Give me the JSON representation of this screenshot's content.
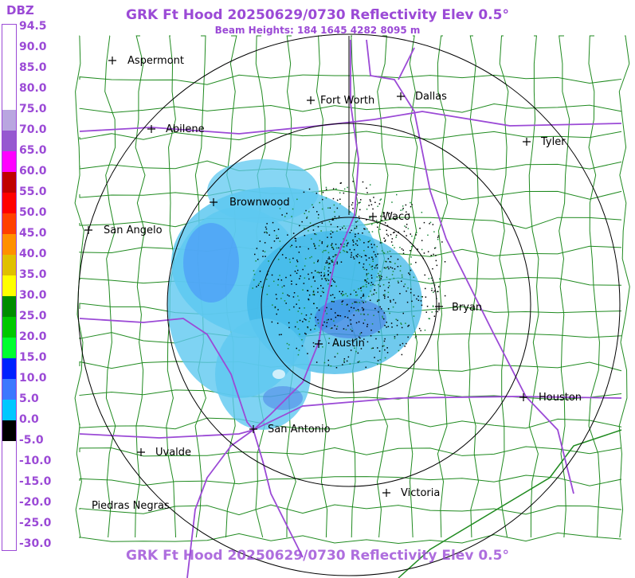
{
  "header": {
    "title": "GRK Ft Hood 20250629/0730 Reflectivity Elev 0.5°",
    "subtitle": "Beam Heights: 184 1645 4282 8095 m",
    "footer_title": "GRK Ft Hood 20250629/0730 Reflectivity Elev 0.5°"
  },
  "legend": {
    "unit": "DBZ",
    "labels": [
      "94.5",
      "90.0",
      "85.0",
      "80.0",
      "75.0",
      "70.0",
      "65.0",
      "60.0",
      "55.0",
      "50.0",
      "45.0",
      "40.0",
      "35.0",
      "30.0",
      "25.0",
      "20.0",
      "15.0",
      "10.0",
      "5.0",
      "0.0",
      "-5.0",
      "-10.0",
      "-15.0",
      "-20.0",
      "-25.0",
      "-30.0"
    ],
    "bands": [
      {
        "from": 75.0,
        "to": 94.5,
        "color": "#ffffff"
      },
      {
        "from": 70.0,
        "to": 75.0,
        "color": "#b9a6e0"
      },
      {
        "from": 65.0,
        "to": 70.0,
        "color": "#9658d0"
      },
      {
        "from": 60.0,
        "to": 65.0,
        "color": "#ff00ff"
      },
      {
        "from": 55.0,
        "to": 60.0,
        "color": "#c00000"
      },
      {
        "from": 50.0,
        "to": 55.0,
        "color": "#ff0000"
      },
      {
        "from": 45.0,
        "to": 50.0,
        "color": "#ff4000"
      },
      {
        "from": 40.0,
        "to": 45.0,
        "color": "#ff9000"
      },
      {
        "from": 35.0,
        "to": 40.0,
        "color": "#e0c000"
      },
      {
        "from": 30.0,
        "to": 35.0,
        "color": "#ffff00"
      },
      {
        "from": 25.0,
        "to": 30.0,
        "color": "#008c00"
      },
      {
        "from": 20.0,
        "to": 25.0,
        "color": "#00c800"
      },
      {
        "from": 15.0,
        "to": 20.0,
        "color": "#00ff30"
      },
      {
        "from": 10.0,
        "to": 15.0,
        "color": "#0020ff"
      },
      {
        "from": 5.0,
        "to": 10.0,
        "color": "#3c78ff"
      },
      {
        "from": 0.0,
        "to": 5.0,
        "color": "#00c8ff"
      },
      {
        "from": -5.0,
        "to": 0.0,
        "color": "#000000"
      }
    ]
  },
  "cities": [
    "Aspermont",
    "Fort Worth",
    "Dallas",
    "Abilene",
    "Tyler",
    "Brownwood",
    "Waco",
    "San Angelo",
    "Bryan",
    "Austin",
    "Houston",
    "San Antonio",
    "Uvalde",
    "Victoria",
    "Piedras Negras"
  ],
  "colors": {
    "accent": "#9b4ad6",
    "counties": "#1f8a1f",
    "highways": "#9b4ad6",
    "range_rings": "#000000",
    "echo_light": "#5ec8f0",
    "echo_mid": "#3aa8e8",
    "echo_heavy": "#3c64e0"
  }
}
